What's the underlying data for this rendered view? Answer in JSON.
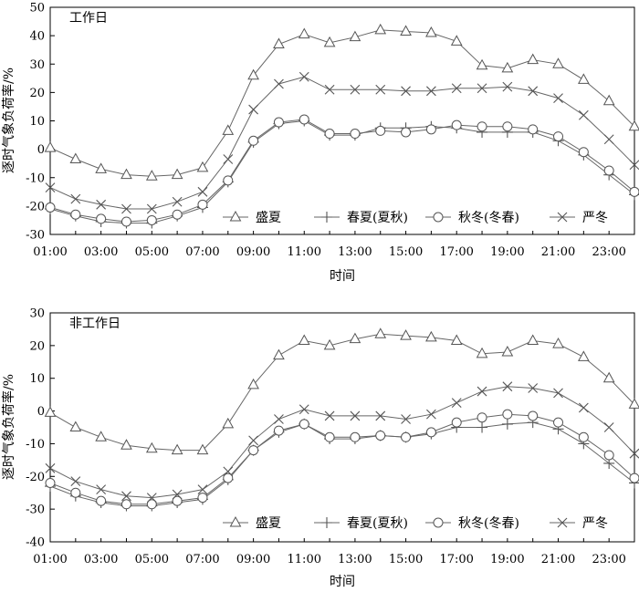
{
  "chart_data": [
    {
      "type": "line",
      "panel_title": "工作日",
      "xlabel": "时间",
      "ylabel": "逐时气象负荷率/%",
      "ylim": [
        -30,
        50
      ],
      "yticks": [
        -30,
        -20,
        -10,
        0,
        10,
        20,
        30,
        40,
        50
      ],
      "x_hours": [
        1,
        2,
        3,
        4,
        5,
        6,
        7,
        8,
        9,
        10,
        11,
        12,
        13,
        14,
        15,
        16,
        17,
        18,
        19,
        20,
        21,
        22,
        23,
        24
      ],
      "xtick_hours": [
        1,
        3,
        5,
        7,
        9,
        11,
        13,
        15,
        17,
        19,
        21,
        23
      ],
      "xtick_labels": [
        "01:00",
        "03:00",
        "05:00",
        "07:00",
        "09:00",
        "11:00",
        "13:00",
        "15:00",
        "17:00",
        "19:00",
        "21:00",
        "23:00"
      ],
      "legend_position": "none",
      "series": [
        {
          "name": "盛夏",
          "marker": "triangle",
          "values": [
            0.5,
            -3.5,
            -7,
            -9,
            -9.5,
            -9,
            -6.5,
            6.5,
            26,
            37,
            40.5,
            37.5,
            39.5,
            42,
            41.5,
            41,
            38,
            29.5,
            28.5,
            31.5,
            30,
            24.5,
            17,
            8
          ]
        },
        {
          "name": "春夏(夏秋)",
          "marker": "plus",
          "values": [
            -21,
            -23.5,
            -25.5,
            -26,
            -26,
            -23.5,
            -20.5,
            -11.5,
            2.5,
            9,
            10,
            5,
            5,
            7.5,
            7.5,
            8,
            7.5,
            6,
            6,
            6,
            3,
            -2,
            -9,
            -16
          ]
        },
        {
          "name": "秋冬(冬春)",
          "marker": "circle",
          "values": [
            -20.5,
            -23,
            -24.5,
            -25.5,
            -25,
            -23,
            -19.5,
            -11,
            3,
            9.5,
            10.5,
            5.5,
            5.5,
            6.5,
            6,
            7,
            8.5,
            8,
            8,
            7,
            4.5,
            -1,
            -7.5,
            -15
          ]
        },
        {
          "name": "严冬",
          "marker": "x",
          "values": [
            -13.5,
            -17.5,
            -19.5,
            -21,
            -21,
            -18.5,
            -15,
            -3.5,
            14,
            23,
            25.5,
            21,
            21,
            21,
            20.5,
            20.5,
            21.5,
            21.5,
            22,
            20.5,
            18,
            12,
            3.5,
            -5.5
          ]
        }
      ]
    },
    {
      "type": "line",
      "panel_title": "非工作日",
      "xlabel": "时间",
      "ylabel": "逐时气象负荷率/%",
      "ylim": [
        -40,
        30
      ],
      "yticks": [
        -40,
        -30,
        -20,
        -10,
        0,
        10,
        20,
        30
      ],
      "x_hours": [
        1,
        2,
        3,
        4,
        5,
        6,
        7,
        8,
        9,
        10,
        11,
        12,
        13,
        14,
        15,
        16,
        17,
        18,
        19,
        20,
        21,
        22,
        23,
        24
      ],
      "xtick_hours": [
        1,
        3,
        5,
        7,
        9,
        11,
        13,
        15,
        17,
        19,
        21,
        23
      ],
      "xtick_labels": [
        "01:00",
        "03:00",
        "05:00",
        "07:00",
        "09:00",
        "11:00",
        "13:00",
        "15:00",
        "17:00",
        "19:00",
        "21:00",
        "23:00"
      ],
      "legend_position": "bottom-right",
      "series": [
        {
          "name": "盛夏",
          "marker": "triangle",
          "values": [
            -0.5,
            -5,
            -8,
            -10.5,
            -11.5,
            -12,
            -12,
            -4,
            8,
            17,
            21.5,
            20,
            22,
            23.5,
            23,
            22.5,
            21.5,
            17.5,
            18,
            21.5,
            20.5,
            16.5,
            10,
            2
          ]
        },
        {
          "name": "春夏(夏秋)",
          "marker": "plus",
          "values": [
            -23,
            -26,
            -28,
            -29,
            -29,
            -28,
            -27,
            -21,
            -12,
            -6.5,
            -4,
            -8.5,
            -8.5,
            -7.5,
            -8,
            -7,
            -5,
            -5,
            -4,
            -3.5,
            -5.5,
            -10,
            -16,
            -22
          ]
        },
        {
          "name": "秋冬(冬春)",
          "marker": "circle",
          "values": [
            -22,
            -25,
            -27.5,
            -28.5,
            -28.5,
            -27.5,
            -26.5,
            -20.5,
            -12,
            -6,
            -4,
            -8,
            -8,
            -7.5,
            -8,
            -6.5,
            -3.5,
            -2,
            -1,
            -1.5,
            -3.5,
            -8,
            -13.5,
            -20.5
          ]
        },
        {
          "name": "严冬",
          "marker": "x",
          "values": [
            -17.5,
            -21.5,
            -24,
            -26,
            -26.5,
            -25.5,
            -24,
            -18.5,
            -9,
            -2.5,
            0.5,
            -1.5,
            -1.5,
            -1.5,
            -2.5,
            -1,
            2.5,
            6,
            7.5,
            7,
            5.5,
            1,
            -5,
            -13
          ]
        }
      ]
    }
  ]
}
